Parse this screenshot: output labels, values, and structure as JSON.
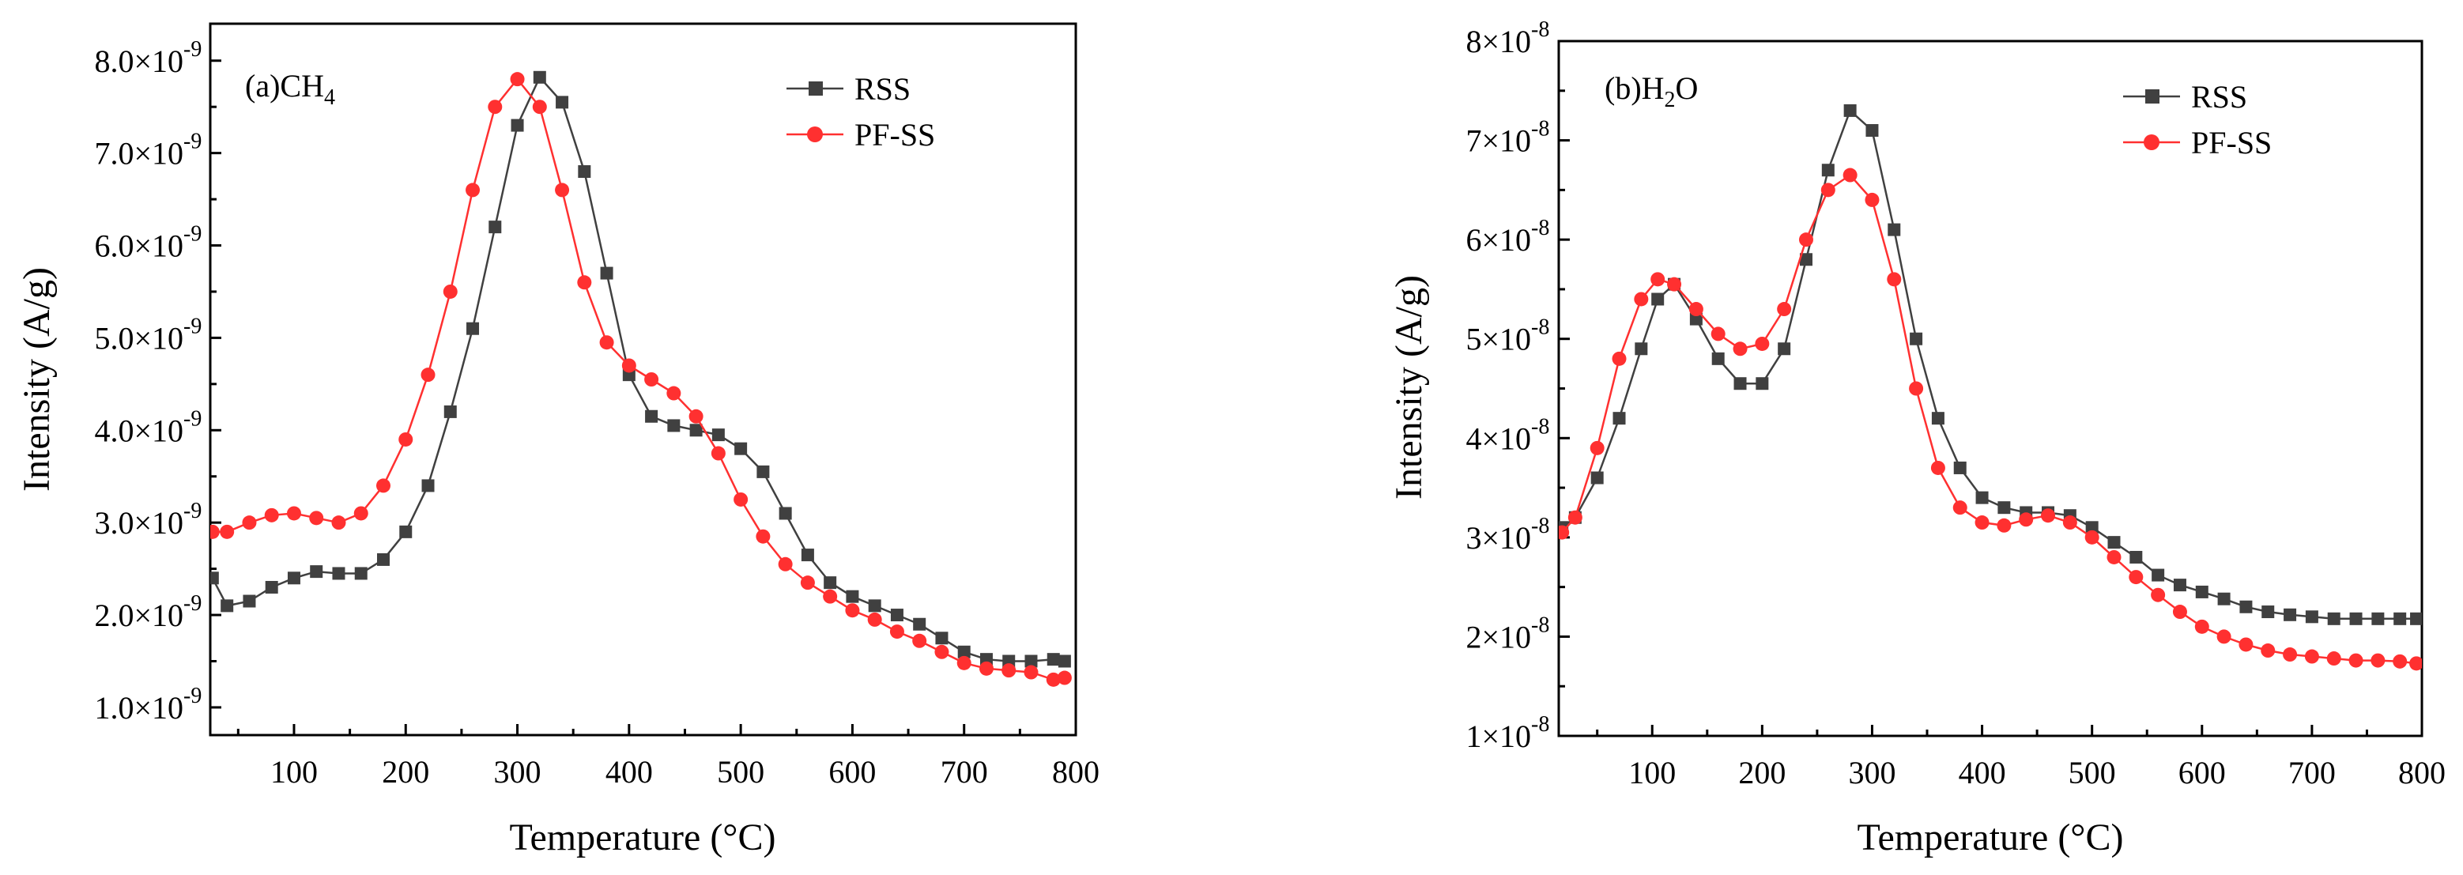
{
  "chart_data": [
    {
      "type": "line",
      "panel_label": "(a)CH",
      "panel_label_sub": "4",
      "xlabel": "Temperature (°C)",
      "ylabel": "Intensity (A/g)",
      "xlim": [
        25,
        800
      ],
      "ylim": [
        0.7,
        8.4
      ],
      "xticks": [
        100,
        200,
        300,
        400,
        500,
        600,
        700,
        800
      ],
      "xtick_labels": [
        "100",
        "200",
        "300",
        "400",
        "500",
        "600",
        "700",
        "800"
      ],
      "yticks": [
        1,
        2,
        3,
        4,
        5,
        6,
        7,
        8
      ],
      "ytick_labels": [
        "1.0×10",
        "2.0×10",
        "3.0×10",
        "4.0×10",
        "5.0×10",
        "6.0×10",
        "7.0×10",
        "8.0×10"
      ],
      "ytick_exponent": "-9",
      "legend_position": "top-right",
      "series": [
        {
          "name": "RSS",
          "color": "#404040",
          "marker": "square",
          "points": [
            [
              27,
              2.4
            ],
            [
              40,
              2.1
            ],
            [
              60,
              2.15
            ],
            [
              80,
              2.3
            ],
            [
              100,
              2.4
            ],
            [
              120,
              2.47
            ],
            [
              140,
              2.45
            ],
            [
              160,
              2.45
            ],
            [
              180,
              2.6
            ],
            [
              200,
              2.9
            ],
            [
              220,
              3.4
            ],
            [
              240,
              4.2
            ],
            [
              260,
              5.1
            ],
            [
              280,
              6.2
            ],
            [
              300,
              7.3
            ],
            [
              320,
              7.82
            ],
            [
              340,
              7.55
            ],
            [
              360,
              6.8
            ],
            [
              380,
              5.7
            ],
            [
              400,
              4.6
            ],
            [
              420,
              4.15
            ],
            [
              440,
              4.05
            ],
            [
              460,
              4.0
            ],
            [
              480,
              3.95
            ],
            [
              500,
              3.8
            ],
            [
              520,
              3.55
            ],
            [
              540,
              3.1
            ],
            [
              560,
              2.65
            ],
            [
              580,
              2.35
            ],
            [
              600,
              2.2
            ],
            [
              620,
              2.1
            ],
            [
              640,
              2.0
            ],
            [
              660,
              1.9
            ],
            [
              680,
              1.75
            ],
            [
              700,
              1.6
            ],
            [
              720,
              1.52
            ],
            [
              740,
              1.5
            ],
            [
              760,
              1.5
            ],
            [
              780,
              1.52
            ],
            [
              790,
              1.5
            ]
          ]
        },
        {
          "name": "PF-SS",
          "color": "#ff3030",
          "marker": "circle",
          "points": [
            [
              27,
              2.9
            ],
            [
              40,
              2.9
            ],
            [
              60,
              3.0
            ],
            [
              80,
              3.08
            ],
            [
              100,
              3.1
            ],
            [
              120,
              3.05
            ],
            [
              140,
              3.0
            ],
            [
              160,
              3.1
            ],
            [
              180,
              3.4
            ],
            [
              200,
              3.9
            ],
            [
              220,
              4.6
            ],
            [
              240,
              5.5
            ],
            [
              260,
              6.6
            ],
            [
              280,
              7.5
            ],
            [
              300,
              7.8
            ],
            [
              320,
              7.5
            ],
            [
              340,
              6.6
            ],
            [
              360,
              5.6
            ],
            [
              380,
              4.95
            ],
            [
              400,
              4.7
            ],
            [
              420,
              4.55
            ],
            [
              440,
              4.4
            ],
            [
              460,
              4.15
            ],
            [
              480,
              3.75
            ],
            [
              500,
              3.25
            ],
            [
              520,
              2.85
            ],
            [
              540,
              2.55
            ],
            [
              560,
              2.35
            ],
            [
              580,
              2.2
            ],
            [
              600,
              2.05
            ],
            [
              620,
              1.95
            ],
            [
              640,
              1.82
            ],
            [
              660,
              1.72
            ],
            [
              680,
              1.6
            ],
            [
              700,
              1.48
            ],
            [
              720,
              1.42
            ],
            [
              740,
              1.4
            ],
            [
              760,
              1.38
            ],
            [
              780,
              1.3
            ],
            [
              790,
              1.32
            ]
          ]
        }
      ]
    },
    {
      "type": "line",
      "panel_label": "(b)H",
      "panel_label_sub": "2",
      "panel_label_tail": "O",
      "xlabel": "Temperature (°C)",
      "ylabel": "Intensity (A/g)",
      "xlim": [
        15,
        800
      ],
      "ylim": [
        1,
        8
      ],
      "xticks": [
        100,
        200,
        300,
        400,
        500,
        600,
        700,
        800
      ],
      "xtick_labels": [
        "100",
        "200",
        "300",
        "400",
        "500",
        "600",
        "700",
        "800"
      ],
      "yticks": [
        1,
        2,
        3,
        4,
        5,
        6,
        7,
        8
      ],
      "ytick_labels": [
        "1×10",
        "2×10",
        "3×10",
        "4×10",
        "5×10",
        "6×10",
        "7×10",
        "8×10"
      ],
      "ytick_exponent": "-8",
      "legend_position": "top-right",
      "series": [
        {
          "name": "RSS",
          "color": "#404040",
          "marker": "square",
          "points": [
            [
              18,
              3.1
            ],
            [
              30,
              3.2
            ],
            [
              50,
              3.6
            ],
            [
              70,
              4.2
            ],
            [
              90,
              4.9
            ],
            [
              105,
              5.4
            ],
            [
              120,
              5.55
            ],
            [
              140,
              5.2
            ],
            [
              160,
              4.8
            ],
            [
              180,
              4.55
            ],
            [
              200,
              4.55
            ],
            [
              220,
              4.9
            ],
            [
              240,
              5.8
            ],
            [
              260,
              6.7
            ],
            [
              280,
              7.3
            ],
            [
              300,
              7.1
            ],
            [
              320,
              6.1
            ],
            [
              340,
              5.0
            ],
            [
              360,
              4.2
            ],
            [
              380,
              3.7
            ],
            [
              400,
              3.4
            ],
            [
              420,
              3.3
            ],
            [
              440,
              3.25
            ],
            [
              460,
              3.25
            ],
            [
              480,
              3.22
            ],
            [
              500,
              3.1
            ],
            [
              520,
              2.95
            ],
            [
              540,
              2.8
            ],
            [
              560,
              2.62
            ],
            [
              580,
              2.52
            ],
            [
              600,
              2.45
            ],
            [
              620,
              2.38
            ],
            [
              640,
              2.3
            ],
            [
              660,
              2.25
            ],
            [
              680,
              2.22
            ],
            [
              700,
              2.2
            ],
            [
              720,
              2.18
            ],
            [
              740,
              2.18
            ],
            [
              760,
              2.18
            ],
            [
              780,
              2.18
            ],
            [
              795,
              2.18
            ]
          ]
        },
        {
          "name": "PF-SS",
          "color": "#ff3030",
          "marker": "circle",
          "points": [
            [
              18,
              3.05
            ],
            [
              30,
              3.2
            ],
            [
              50,
              3.9
            ],
            [
              70,
              4.8
            ],
            [
              90,
              5.4
            ],
            [
              105,
              5.6
            ],
            [
              120,
              5.55
            ],
            [
              140,
              5.3
            ],
            [
              160,
              5.05
            ],
            [
              180,
              4.9
            ],
            [
              200,
              4.95
            ],
            [
              220,
              5.3
            ],
            [
              240,
              6.0
            ],
            [
              260,
              6.5
            ],
            [
              280,
              6.65
            ],
            [
              300,
              6.4
            ],
            [
              320,
              5.6
            ],
            [
              340,
              4.5
            ],
            [
              360,
              3.7
            ],
            [
              380,
              3.3
            ],
            [
              400,
              3.15
            ],
            [
              420,
              3.12
            ],
            [
              440,
              3.18
            ],
            [
              460,
              3.22
            ],
            [
              480,
              3.15
            ],
            [
              500,
              3.0
            ],
            [
              520,
              2.8
            ],
            [
              540,
              2.6
            ],
            [
              560,
              2.42
            ],
            [
              580,
              2.25
            ],
            [
              600,
              2.1
            ],
            [
              620,
              2.0
            ],
            [
              640,
              1.92
            ],
            [
              660,
              1.86
            ],
            [
              680,
              1.82
            ],
            [
              700,
              1.8
            ],
            [
              720,
              1.78
            ],
            [
              740,
              1.76
            ],
            [
              760,
              1.76
            ],
            [
              780,
              1.75
            ],
            [
              795,
              1.73
            ]
          ]
        }
      ]
    }
  ]
}
